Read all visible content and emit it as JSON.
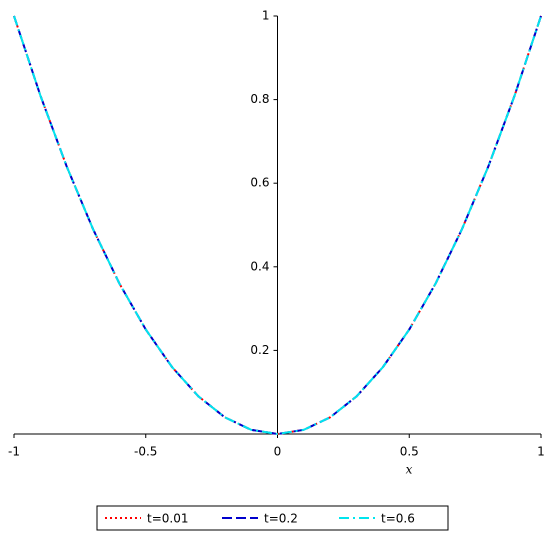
{
  "chart_data": {
    "type": "line",
    "x_label": "x",
    "x": [
      -1,
      -0.9,
      -0.8,
      -0.7,
      -0.6,
      -0.5,
      -0.4,
      -0.3,
      -0.2,
      -0.1,
      0,
      0.1,
      0.2,
      0.3,
      0.4,
      0.5,
      0.6,
      0.7,
      0.8,
      0.9,
      1
    ],
    "series": [
      {
        "name": "t=0.01",
        "color": "#ff0000",
        "line_style": "dotted",
        "values": [
          1,
          0.81,
          0.64,
          0.49,
          0.36,
          0.25,
          0.16,
          0.09,
          0.04,
          0.01,
          0,
          0.01,
          0.04,
          0.09,
          0.16,
          0.25,
          0.36,
          0.49,
          0.64,
          0.81,
          1
        ]
      },
      {
        "name": "t=0.2",
        "color": "#0000cc",
        "line_style": "dashed",
        "values": [
          1,
          0.81,
          0.64,
          0.49,
          0.36,
          0.25,
          0.16,
          0.09,
          0.04,
          0.01,
          0,
          0.01,
          0.04,
          0.09,
          0.16,
          0.25,
          0.36,
          0.49,
          0.64,
          0.81,
          1
        ]
      },
      {
        "name": "t=0.6",
        "color": "#00e5ee",
        "line_style": "dashdot",
        "values": [
          1,
          0.81,
          0.64,
          0.49,
          0.36,
          0.25,
          0.16,
          0.09,
          0.04,
          0.01,
          0,
          0.01,
          0.04,
          0.09,
          0.16,
          0.25,
          0.36,
          0.49,
          0.64,
          0.81,
          1
        ]
      }
    ],
    "xlim": [
      -1,
      1
    ],
    "ylim": [
      0,
      1
    ],
    "xticks": [
      -1,
      -0.5,
      0,
      0.5,
      1
    ],
    "yticks": [
      0.2,
      0.4,
      0.6,
      0.8,
      1
    ],
    "legend": "bottom"
  }
}
